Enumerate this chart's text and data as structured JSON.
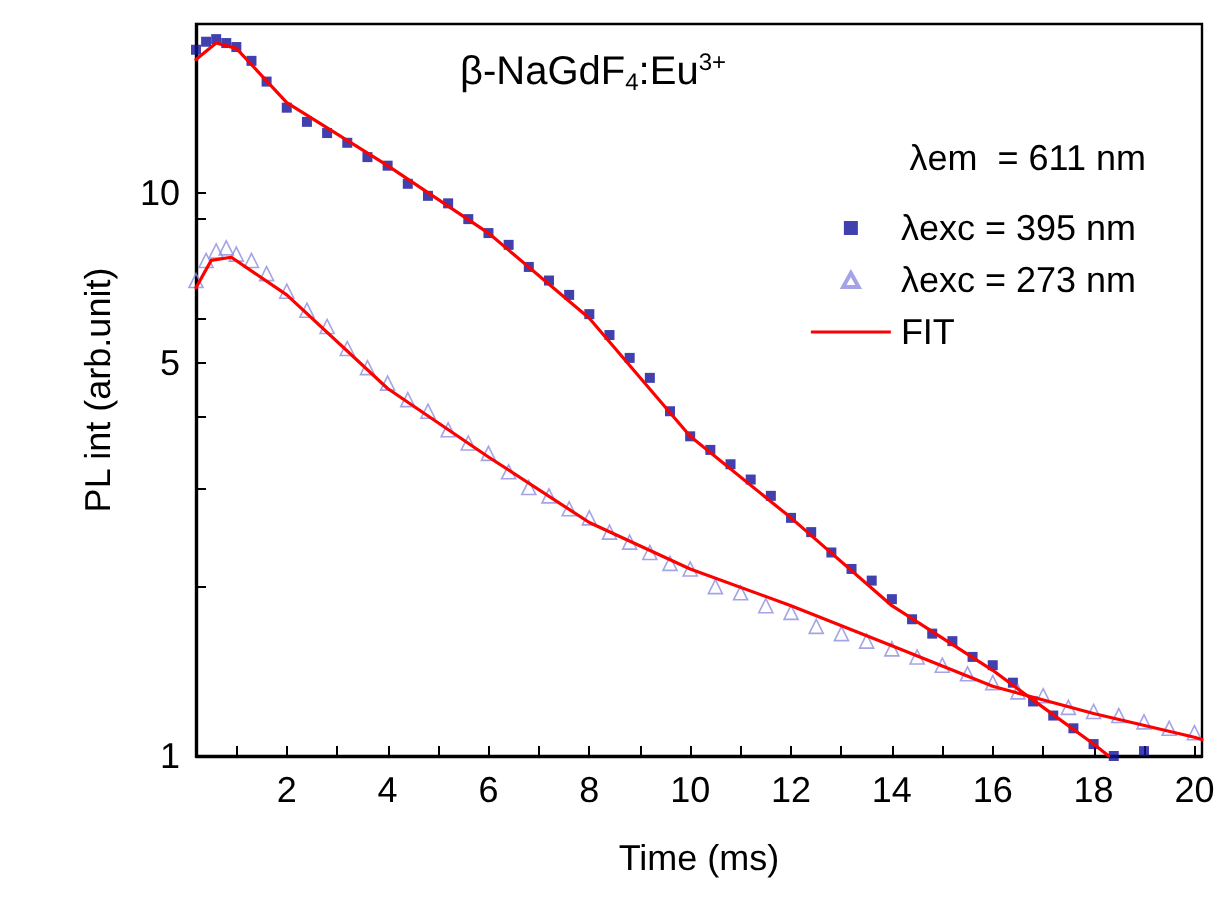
{
  "chart_data": {
    "type": "scatter",
    "title": "β-NaGdF$_{4}$:Eu$^{3+}$",
    "xlabel": "Time (ms)",
    "ylabel": "PL int (arb.unit)",
    "legend_title": "λem  = 611 nm",
    "xlim": [
      0.2,
      20.15
    ],
    "xticks": [
      {
        "value": 1,
        "label": null
      },
      2,
      {
        "value": 3,
        "label": null
      },
      4,
      {
        "value": 5,
        "label": null
      },
      6,
      {
        "value": 7,
        "label": null
      },
      8,
      {
        "value": 9,
        "label": null
      },
      10,
      {
        "value": 11,
        "label": null
      },
      12,
      {
        "value": 13,
        "label": null
      },
      14,
      {
        "value": 15,
        "label": null
      },
      16,
      {
        "value": 17,
        "label": null
      },
      18,
      {
        "value": 19,
        "label": null
      },
      20
    ],
    "ylim": [
      1,
      20
    ],
    "yticks": [
      1,
      {
        "value": 2,
        "label": null
      },
      {
        "value": 3,
        "label": null
      },
      {
        "value": 4,
        "label": null
      },
      5,
      {
        "value": 6,
        "label": null
      },
      {
        "value": 9,
        "label": null
      },
      10
    ],
    "log": "y",
    "grid": false,
    "legend": "top right",
    "series": [
      {
        "name": "λexc = 395 nm",
        "marker": "square",
        "color": "#10109a",
        "x": [
          0.2,
          0.4,
          0.6,
          0.8,
          1.0,
          1.3,
          1.6,
          2.0,
          2.4,
          2.8,
          3.2,
          3.6,
          4.0,
          4.4,
          4.8,
          5.2,
          5.6,
          6.0,
          6.4,
          6.8,
          7.2,
          7.6,
          8.0,
          8.4,
          8.8,
          9.2,
          9.6,
          10.0,
          10.4,
          10.8,
          11.2,
          11.6,
          12.0,
          12.4,
          12.8,
          13.2,
          13.6,
          14.0,
          14.4,
          14.8,
          15.2,
          15.6,
          16.0,
          16.4,
          16.8,
          17.2,
          17.6,
          18.0,
          18.4,
          19.0
        ],
        "values": [
          18.0,
          18.6,
          18.8,
          18.5,
          18.2,
          17.2,
          15.8,
          14.2,
          13.4,
          12.8,
          12.3,
          11.6,
          11.2,
          10.4,
          9.9,
          9.6,
          9.0,
          8.5,
          8.1,
          7.4,
          7.0,
          6.6,
          6.1,
          5.6,
          5.1,
          4.7,
          4.1,
          3.7,
          3.5,
          3.3,
          3.1,
          2.9,
          2.65,
          2.5,
          2.3,
          2.15,
          2.05,
          1.9,
          1.75,
          1.65,
          1.6,
          1.5,
          1.45,
          1.35,
          1.25,
          1.18,
          1.12,
          1.05,
          1.0,
          1.02
        ]
      },
      {
        "name": "λexc = 273 nm",
        "marker": "triangle",
        "color": "#8c8ce0",
        "x": [
          0.2,
          0.4,
          0.6,
          0.8,
          1.0,
          1.3,
          1.6,
          2.0,
          2.4,
          2.8,
          3.2,
          3.6,
          4.0,
          4.4,
          4.8,
          5.2,
          5.6,
          6.0,
          6.4,
          6.8,
          7.2,
          7.6,
          8.0,
          8.4,
          8.8,
          9.2,
          9.6,
          10.0,
          10.5,
          11.0,
          11.5,
          12.0,
          12.5,
          13.0,
          13.5,
          14.0,
          14.5,
          15.0,
          15.5,
          16.0,
          16.5,
          17.0,
          17.5,
          18.0,
          18.5,
          19.0,
          19.5,
          20.0
        ],
        "values": [
          7.0,
          7.6,
          7.9,
          8.0,
          7.8,
          7.6,
          7.2,
          6.7,
          6.2,
          5.8,
          5.3,
          4.9,
          4.6,
          4.3,
          4.1,
          3.8,
          3.6,
          3.45,
          3.2,
          3.0,
          2.9,
          2.75,
          2.65,
          2.5,
          2.4,
          2.3,
          2.2,
          2.15,
          2.0,
          1.95,
          1.85,
          1.8,
          1.7,
          1.65,
          1.6,
          1.55,
          1.5,
          1.45,
          1.4,
          1.35,
          1.3,
          1.28,
          1.22,
          1.2,
          1.18,
          1.15,
          1.12,
          1.1
        ]
      },
      {
        "name": "FIT",
        "type": "line",
        "color": "#ff0000",
        "marker": "none",
        "line_style": "solid",
        "x": [
          0.2,
          0.6,
          1.0,
          2.0,
          4.0,
          6.0,
          8.0,
          10.0,
          12.0,
          14.0,
          16.0,
          17.0,
          18.0,
          18.3
        ],
        "values": [
          17.3,
          18.5,
          18.1,
          14.5,
          11.2,
          8.5,
          6.0,
          3.7,
          2.65,
          1.85,
          1.42,
          1.22,
          1.05,
          1.0
        ]
      },
      {
        "type": "line",
        "color": "#ff0000",
        "marker": "none",
        "line_style": "solid",
        "x": [
          0.2,
          0.5,
          0.9,
          2.0,
          4.0,
          6.0,
          8.0,
          10.0,
          12.0,
          14.0,
          16.0,
          18.0,
          20.0,
          20.15
        ],
        "values": [
          6.8,
          7.6,
          7.7,
          6.6,
          4.5,
          3.4,
          2.6,
          2.15,
          1.85,
          1.57,
          1.33,
          1.19,
          1.08,
          1.07
        ]
      }
    ]
  }
}
